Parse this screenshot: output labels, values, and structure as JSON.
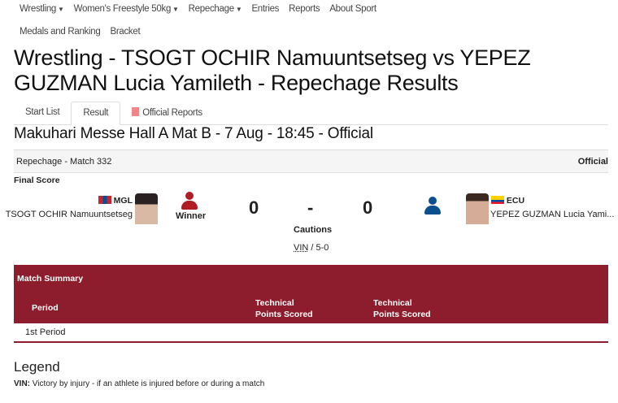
{
  "nav": {
    "row1": [
      {
        "label": "Wrestling",
        "dropdown": true
      },
      {
        "label": "Women's Freestyle 50kg",
        "dropdown": true
      },
      {
        "label": "Repechage",
        "dropdown": true
      },
      {
        "label": "Entries"
      },
      {
        "label": "Reports"
      },
      {
        "label": "About Sport"
      }
    ],
    "row2": [
      {
        "label": "Medals and Ranking"
      },
      {
        "label": "Bracket"
      }
    ]
  },
  "title": "Wrestling - TSOGT OCHIR Namuuntsetseg vs YEPEZ GUZMAN Lucia Yamileth - Repechage Results",
  "tabs": [
    {
      "label": "Start List"
    },
    {
      "label": "Result",
      "active": true
    },
    {
      "label": "Official Reports",
      "icon": "pdf-icon"
    }
  ],
  "venue": "Makuhari Messe Hall A Mat B - 7 Aug - 18:45 - Official",
  "match": {
    "label": "Repechage - Match 332",
    "status": "Official"
  },
  "final_score_label": "Final Score",
  "athlete1": {
    "noc": "MGL",
    "name": "TSOGT OCHIR Namuuntsetseg",
    "result": "Winner",
    "score": "0",
    "color": "#b01c24"
  },
  "athlete2": {
    "noc": "ECU",
    "name": "YEPEZ GUZMAN Lucia Yami...",
    "score": "0",
    "color": "#0b4f8f"
  },
  "separator": "-",
  "cautions_label": "Cautions",
  "decision": {
    "code": "VIN",
    "rest": " / 5-0"
  },
  "summary": {
    "title": "Match Summary",
    "col_period": "Period",
    "col_tp1": "Technical Points Scored",
    "col_tp2": "Technical Points Scored",
    "rows": [
      {
        "period": "1st Period"
      }
    ]
  },
  "legend": {
    "title": "Legend",
    "items": [
      {
        "code": "VIN:",
        "text": " Victory by injury - if an athlete is injured before or during a match"
      }
    ]
  },
  "colors": {
    "accent": "#8d1d2c"
  }
}
